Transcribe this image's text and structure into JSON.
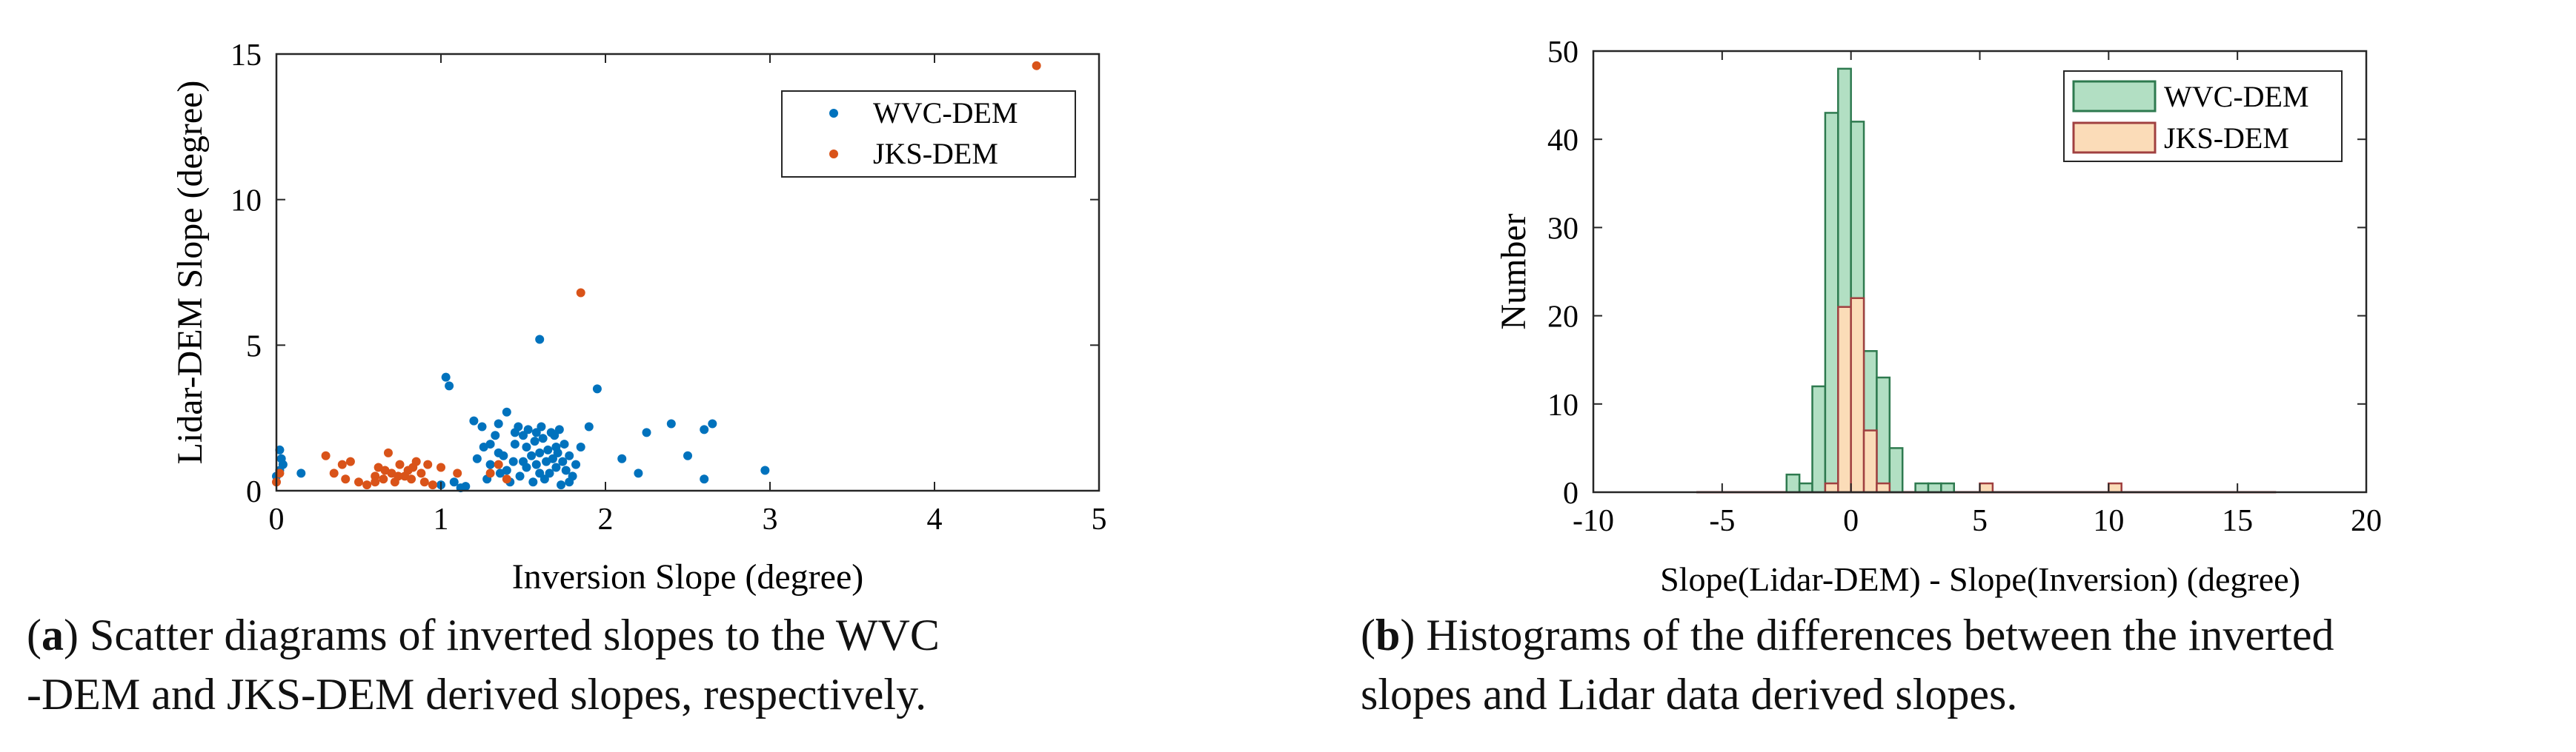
{
  "chart_data": [
    {
      "id": "a",
      "type": "scatter",
      "xlabel": "Inversion Slope (degree)",
      "ylabel": "Lidar-DEM Slope (degree)",
      "xlim": [
        0,
        5
      ],
      "ylim": [
        0,
        15
      ],
      "xticks": [
        "0",
        "1",
        "2",
        "3",
        "4",
        "5"
      ],
      "yticks": [
        "0",
        "5",
        "10",
        "15"
      ],
      "legend_position": "top-right",
      "series": [
        {
          "name": "WVC-DEM",
          "color": "#0072BD",
          "points": [
            [
              0.02,
              1.4
            ],
            [
              0.03,
              1.1
            ],
            [
              0.02,
              0.7
            ],
            [
              0.04,
              0.9
            ],
            [
              0.0,
              0.5
            ],
            [
              0.15,
              0.6
            ],
            [
              1.03,
              3.9
            ],
            [
              1.05,
              3.6
            ],
            [
              1.0,
              0.2
            ],
            [
              1.08,
              0.3
            ],
            [
              1.12,
              0.1
            ],
            [
              1.15,
              0.15
            ],
            [
              1.2,
              2.4
            ],
            [
              1.25,
              2.2
            ],
            [
              1.3,
              1.6
            ],
            [
              1.35,
              2.3
            ],
            [
              1.4,
              2.7
            ],
            [
              1.45,
              2.0
            ],
            [
              1.5,
              1.9
            ],
            [
              1.52,
              1.5
            ],
            [
              1.55,
              1.2
            ],
            [
              1.58,
              0.9
            ],
            [
              1.6,
              0.6
            ],
            [
              1.62,
              1.8
            ],
            [
              1.65,
              1.4
            ],
            [
              1.68,
              1.1
            ],
            [
              1.7,
              0.8
            ],
            [
              1.72,
              2.1
            ],
            [
              1.75,
              1.6
            ],
            [
              1.78,
              1.2
            ],
            [
              1.8,
              0.5
            ],
            [
              1.82,
              0.9
            ],
            [
              1.3,
              0.9
            ],
            [
              1.35,
              1.3
            ],
            [
              1.4,
              0.7
            ],
            [
              1.45,
              1.6
            ],
            [
              1.48,
              0.5
            ],
            [
              1.5,
              1.0
            ],
            [
              1.53,
              2.1
            ],
            [
              1.57,
              1.7
            ],
            [
              1.6,
              1.3
            ],
            [
              1.63,
              0.4
            ],
            [
              1.67,
              2.0
            ],
            [
              1.7,
              1.5
            ],
            [
              1.73,
              0.2
            ],
            [
              1.76,
              0.7
            ],
            [
              1.28,
              0.4
            ],
            [
              1.33,
              1.9
            ],
            [
              1.38,
              1.2
            ],
            [
              1.42,
              0.3
            ],
            [
              1.47,
              2.2
            ],
            [
              1.52,
              0.8
            ],
            [
              1.56,
              0.3
            ],
            [
              1.61,
              2.2
            ],
            [
              1.66,
              0.6
            ],
            [
              1.69,
              1.9
            ],
            [
              1.74,
              1.0
            ],
            [
              1.22,
              1.1
            ],
            [
              1.26,
              1.5
            ],
            [
              1.36,
              0.6
            ],
            [
              1.44,
              1.0
            ],
            [
              1.58,
              2.0
            ],
            [
              1.64,
              1.0
            ],
            [
              1.71,
              1.3
            ],
            [
              1.78,
              0.3
            ],
            [
              1.6,
              5.2
            ],
            [
              1.95,
              3.5
            ],
            [
              2.1,
              1.1
            ],
            [
              2.2,
              0.6
            ],
            [
              2.25,
              2.0
            ],
            [
              2.4,
              2.3
            ],
            [
              2.5,
              1.2
            ],
            [
              2.6,
              2.1
            ],
            [
              2.65,
              2.3
            ],
            [
              2.6,
              0.4
            ],
            [
              2.97,
              0.7
            ],
            [
              1.9,
              2.2
            ],
            [
              1.85,
              1.5
            ]
          ]
        },
        {
          "name": "JKS-DEM",
          "color": "#D95319",
          "points": [
            [
              0.02,
              0.6
            ],
            [
              0.0,
              0.3
            ],
            [
              0.3,
              1.2
            ],
            [
              0.35,
              0.6
            ],
            [
              0.4,
              0.9
            ],
            [
              0.42,
              0.4
            ],
            [
              0.45,
              1.0
            ],
            [
              0.5,
              0.3
            ],
            [
              0.55,
              0.2
            ],
            [
              0.6,
              0.5
            ],
            [
              0.62,
              0.8
            ],
            [
              0.65,
              0.4
            ],
            [
              0.68,
              1.3
            ],
            [
              0.7,
              0.6
            ],
            [
              0.72,
              0.3
            ],
            [
              0.75,
              0.9
            ],
            [
              0.78,
              0.5
            ],
            [
              0.8,
              0.7
            ],
            [
              0.82,
              0.4
            ],
            [
              0.85,
              1.0
            ],
            [
              0.88,
              0.6
            ],
            [
              0.9,
              0.3
            ],
            [
              0.92,
              0.9
            ],
            [
              0.95,
              0.2
            ],
            [
              0.6,
              0.3
            ],
            [
              0.66,
              0.7
            ],
            [
              0.74,
              0.5
            ],
            [
              0.83,
              0.8
            ],
            [
              1.0,
              0.8
            ],
            [
              1.1,
              0.6
            ],
            [
              1.3,
              0.6
            ],
            [
              1.35,
              0.9
            ],
            [
              1.4,
              0.4
            ],
            [
              1.85,
              6.8
            ],
            [
              4.62,
              14.6
            ]
          ]
        }
      ]
    },
    {
      "id": "b",
      "type": "histogram",
      "xlabel": "Slope(Lidar-DEM) - Slope(Inversion) (degree)",
      "ylabel": "Number",
      "xlim": [
        -10,
        20
      ],
      "ylim": [
        0,
        50
      ],
      "xticks": [
        "-10",
        "-5",
        "0",
        "5",
        "10",
        "15",
        "20"
      ],
      "yticks": [
        "0",
        "10",
        "20",
        "30",
        "40",
        "50"
      ],
      "bin_width": 0.5,
      "legend_position": "top-right",
      "series": [
        {
          "name": "WVC-DEM",
          "color": "#B2DFC3",
          "edge": "#2E7A4F",
          "bins": [
            [
              -2.5,
              2
            ],
            [
              -2.0,
              1
            ],
            [
              -1.5,
              12
            ],
            [
              -1.0,
              43
            ],
            [
              -0.5,
              48
            ],
            [
              0.0,
              42
            ],
            [
              0.5,
              16
            ],
            [
              1.0,
              13
            ],
            [
              1.5,
              5
            ],
            [
              2.0,
              0
            ],
            [
              2.5,
              1
            ],
            [
              3.0,
              1
            ],
            [
              3.5,
              1
            ]
          ]
        },
        {
          "name": "JKS-DEM",
          "color": "#FBDCB8",
          "edge": "#A04040",
          "range": [
            -6,
            16.5
          ],
          "bins": [
            [
              -1.0,
              1
            ],
            [
              -0.5,
              21
            ],
            [
              0.0,
              22
            ],
            [
              0.5,
              7
            ],
            [
              1.0,
              1
            ],
            [
              5.0,
              1
            ],
            [
              10.0,
              1
            ]
          ]
        }
      ]
    }
  ],
  "captions": {
    "a": {
      "tag": "a",
      "line1_rest": ") Scatter diagrams of inverted slopes to the WVC",
      "line2": "-DEM and JKS-DEM derived slopes, respectively."
    },
    "b": {
      "tag": "b",
      "line1_rest": ") Histograms of the differences between the inverted",
      "line2": "slopes and Lidar data derived slopes."
    }
  }
}
